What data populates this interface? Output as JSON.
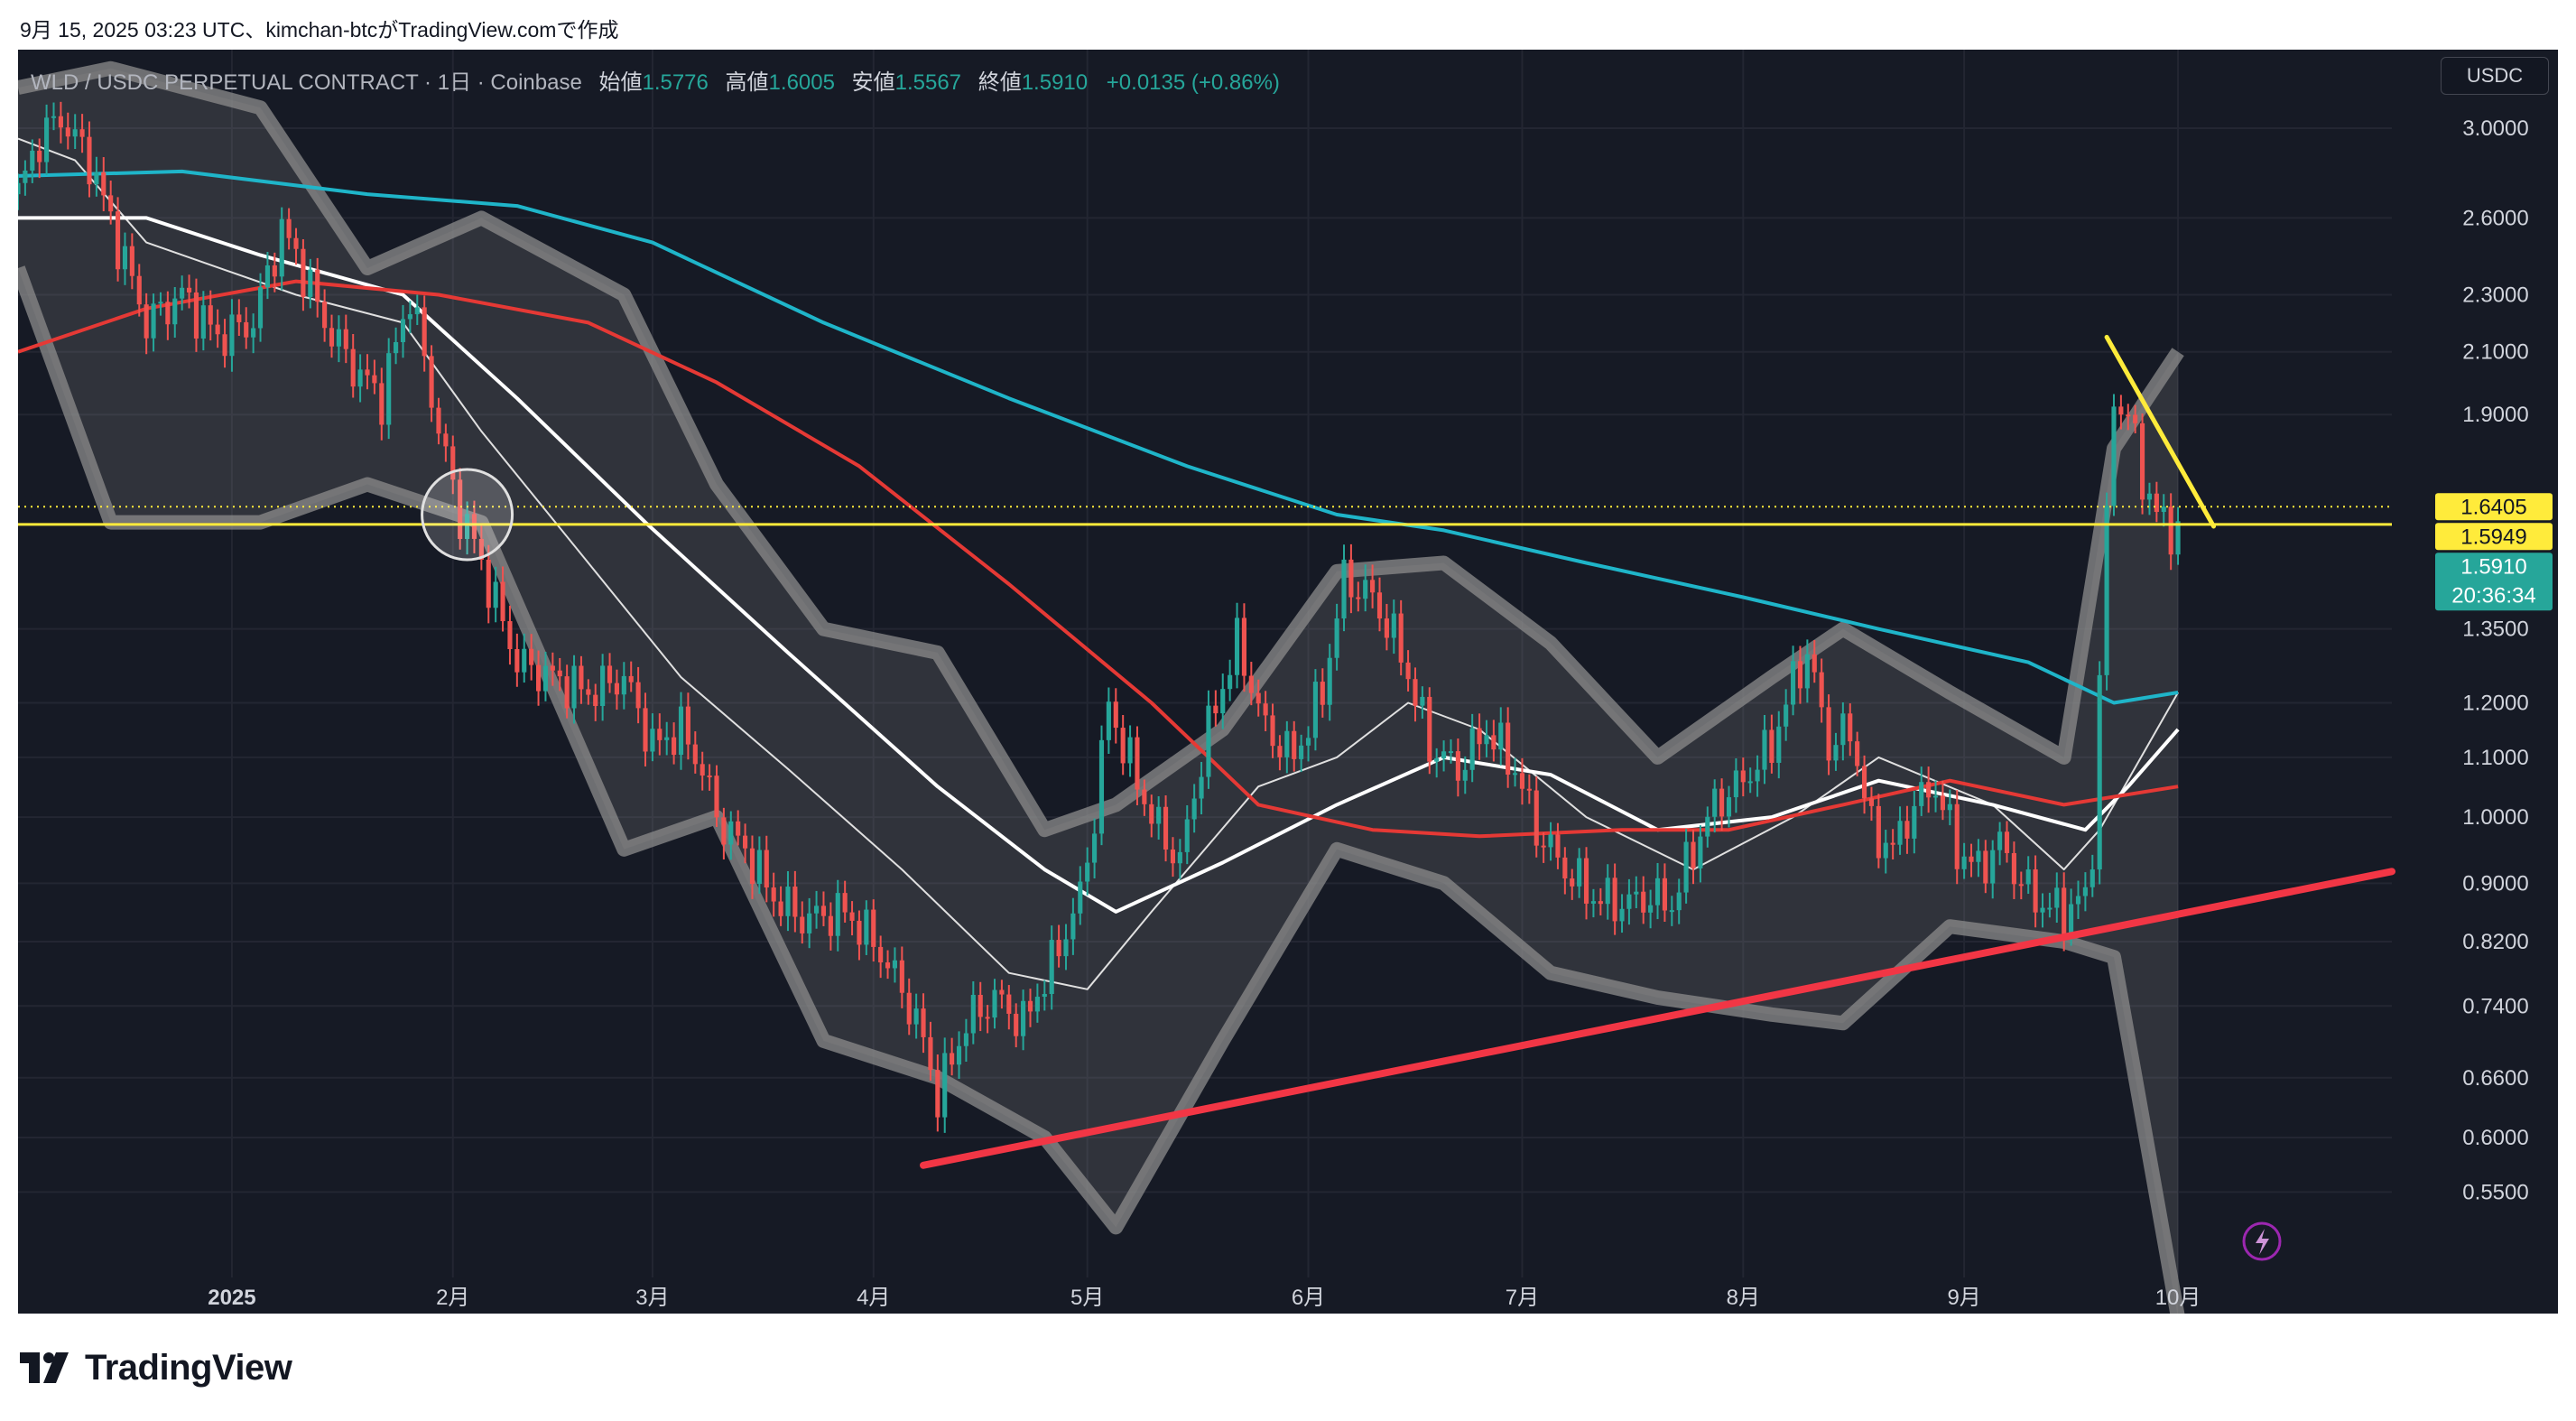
{
  "header": {
    "attribution": "9月 15, 2025 03:23 UTC、kimchan-btcがTradingView.comで作成"
  },
  "legend": {
    "symbol": "WLD / USDC PERPETUAL CONTRACT · 1日 · Coinbase",
    "open_label": "始値",
    "open_value": "1.5776",
    "high_label": "高値",
    "high_value": "1.6005",
    "low_label": "安値",
    "low_value": "1.5567",
    "close_label": "終値",
    "close_value": "1.5910",
    "change": "+0.0135 (+0.86%)"
  },
  "currency": "USDC",
  "brand": {
    "name": "TradingView",
    "icon": "tradingview-logo-icon"
  },
  "colors": {
    "background": "#161a25",
    "grid": "#232632",
    "up": "#26a69a",
    "down": "#ef5350",
    "ma_white": "#ffffff",
    "ma_red": "#e53935",
    "ma_cyan": "#1fb5c9",
    "band": "#8c8c8c",
    "support_line": "#f23645",
    "level_line": "#ffeb3b",
    "price_tag": "#26a69a"
  },
  "chart_data": {
    "type": "candlestick",
    "title": "WLD / USDC PERPETUAL CONTRACT · 1日 · Coinbase",
    "scale": "log",
    "ylim": [
      0.48,
      3.4
    ],
    "y_ticks": [
      "3.0000",
      "2.6000",
      "2.3000",
      "2.1000",
      "1.9000",
      "1.3500",
      "1.2000",
      "1.1000",
      "1.0000",
      "0.9000",
      "0.8200",
      "0.7400",
      "0.6600",
      "0.6000",
      "0.5500"
    ],
    "x_ticks": [
      "2025",
      "2月",
      "3月",
      "4月",
      "5月",
      "6月",
      "7月",
      "8月",
      "9月",
      "10月"
    ],
    "x_start": "2024-12-02",
    "x_end": "2025-10-31",
    "grid": true,
    "last_close": 1.591,
    "countdown": "20:36:34",
    "price_labels": [
      {
        "value": 1.6405,
        "text": "1.6405",
        "style": "yellow"
      },
      {
        "value": 1.5949,
        "text": "1.5949",
        "style": "yellow"
      },
      {
        "value": 1.591,
        "text": "1.5910",
        "style": "green"
      }
    ],
    "horizontal_level": 1.5949,
    "dotted_level": 1.6405,
    "waypoints": [
      [
        "2024-12-02",
        2.7
      ],
      [
        "2024-12-05",
        2.95
      ],
      [
        "2024-12-08",
        3.05
      ],
      [
        "2024-12-12",
        2.85
      ],
      [
        "2024-12-16",
        2.5
      ],
      [
        "2024-12-20",
        2.2
      ],
      [
        "2024-12-25",
        2.3
      ],
      [
        "2024-12-30",
        2.15
      ],
      [
        "2025-01-04",
        2.2
      ],
      [
        "2025-01-08",
        2.55
      ],
      [
        "2025-01-10",
        2.45
      ],
      [
        "2025-01-14",
        2.2
      ],
      [
        "2025-01-18",
        2.05
      ],
      [
        "2025-01-22",
        1.95
      ],
      [
        "2025-01-26",
        2.3
      ],
      [
        "2025-01-30",
        1.85
      ],
      [
        "2025-02-02",
        1.62
      ],
      [
        "2025-02-04",
        1.55
      ],
      [
        "2025-02-06",
        1.45
      ],
      [
        "2025-02-10",
        1.28
      ],
      [
        "2025-02-15",
        1.25
      ],
      [
        "2025-02-20",
        1.22
      ],
      [
        "2025-02-25",
        1.25
      ],
      [
        "2025-03-01",
        1.12
      ],
      [
        "2025-03-05",
        1.15
      ],
      [
        "2025-03-08",
        1.08
      ],
      [
        "2025-03-10",
        1.0
      ],
      [
        "2025-03-14",
        0.95
      ],
      [
        "2025-03-18",
        0.88
      ],
      [
        "2025-03-22",
        0.85
      ],
      [
        "2025-03-28",
        0.86
      ],
      [
        "2025-04-01",
        0.82
      ],
      [
        "2025-04-05",
        0.76
      ],
      [
        "2025-04-08",
        0.7
      ],
      [
        "2025-04-10",
        0.64
      ],
      [
        "2025-04-14",
        0.72
      ],
      [
        "2025-04-18",
        0.75
      ],
      [
        "2025-04-22",
        0.72
      ],
      [
        "2025-04-26",
        0.79
      ],
      [
        "2025-04-30",
        0.88
      ],
      [
        "2025-05-02",
        1.0
      ],
      [
        "2025-05-04",
        1.2
      ],
      [
        "2025-05-06",
        1.12
      ],
      [
        "2025-05-10",
        1.0
      ],
      [
        "2025-05-14",
        0.93
      ],
      [
        "2025-05-18",
        1.15
      ],
      [
        "2025-05-22",
        1.32
      ],
      [
        "2025-05-26",
        1.15
      ],
      [
        "2025-05-30",
        1.1
      ],
      [
        "2025-06-03",
        1.22
      ],
      [
        "2025-06-06",
        1.46
      ],
      [
        "2025-06-10",
        1.42
      ],
      [
        "2025-06-14",
        1.3
      ],
      [
        "2025-06-18",
        1.12
      ],
      [
        "2025-06-22",
        1.08
      ],
      [
        "2025-06-26",
        1.15
      ],
      [
        "2025-06-30",
        1.08
      ],
      [
        "2025-07-03",
        0.98
      ],
      [
        "2025-07-07",
        0.92
      ],
      [
        "2025-07-11",
        0.88
      ],
      [
        "2025-07-15",
        0.87
      ],
      [
        "2025-07-19",
        0.88
      ],
      [
        "2025-07-22",
        0.87
      ],
      [
        "2025-07-25",
        0.95
      ],
      [
        "2025-07-28",
        1.02
      ],
      [
        "2025-08-01",
        1.06
      ],
      [
        "2025-08-05",
        1.12
      ],
      [
        "2025-08-08",
        1.24
      ],
      [
        "2025-08-10",
        1.3
      ],
      [
        "2025-08-13",
        1.12
      ],
      [
        "2025-08-16",
        1.15
      ],
      [
        "2025-08-19",
        0.98
      ],
      [
        "2025-08-22",
        0.95
      ],
      [
        "2025-08-25",
        1.02
      ],
      [
        "2025-08-28",
        1.05
      ],
      [
        "2025-08-31",
        0.95
      ],
      [
        "2025-09-03",
        0.92
      ],
      [
        "2025-09-06",
        0.96
      ],
      [
        "2025-09-09",
        0.9
      ],
      [
        "2025-09-12",
        0.87
      ],
      [
        "2025-09-15",
        0.86
      ],
      [
        "2025-09-18",
        0.88
      ],
      [
        "2025-09-19",
        0.95
      ],
      [
        "2025-09-20",
        1.25
      ],
      [
        "2025-09-21",
        1.6
      ],
      [
        "2025-09-22",
        1.95
      ],
      [
        "2025-09-24",
        1.9
      ],
      [
        "2025-09-26",
        1.72
      ],
      [
        "2025-09-28",
        1.62
      ],
      [
        "2025-09-30",
        1.58
      ],
      [
        "2025-10-01",
        1.591
      ]
    ],
    "moving_averages": [
      {
        "name": "MA-fast",
        "color": "#e0e0e0",
        "points": [
          [
            "2024-12-02",
            2.95
          ],
          [
            "2024-12-10",
            2.85
          ],
          [
            "2024-12-20",
            2.5
          ],
          [
            "2025-01-10",
            2.3
          ],
          [
            "2025-01-25",
            2.2
          ],
          [
            "2025-02-05",
            1.85
          ],
          [
            "2025-02-20",
            1.5
          ],
          [
            "2025-03-05",
            1.25
          ],
          [
            "2025-03-20",
            1.08
          ],
          [
            "2025-04-05",
            0.92
          ],
          [
            "2025-04-20",
            0.78
          ],
          [
            "2025-05-01",
            0.76
          ],
          [
            "2025-05-10",
            0.86
          ],
          [
            "2025-05-25",
            1.05
          ],
          [
            "2025-06-05",
            1.1
          ],
          [
            "2025-06-15",
            1.2
          ],
          [
            "2025-06-25",
            1.15
          ],
          [
            "2025-07-10",
            1.0
          ],
          [
            "2025-07-25",
            0.92
          ],
          [
            "2025-08-08",
            1.0
          ],
          [
            "2025-08-20",
            1.1
          ],
          [
            "2025-09-05",
            1.02
          ],
          [
            "2025-09-15",
            0.92
          ],
          [
            "2025-09-20",
            0.98
          ],
          [
            "2025-10-01",
            1.22
          ]
        ]
      },
      {
        "name": "MA-white",
        "color": "#ffffff",
        "points": [
          [
            "2024-12-02",
            2.6
          ],
          [
            "2024-12-20",
            2.6
          ],
          [
            "2025-01-05",
            2.45
          ],
          [
            "2025-01-25",
            2.3
          ],
          [
            "2025-02-10",
            1.95
          ],
          [
            "2025-02-28",
            1.6
          ],
          [
            "2025-03-20",
            1.3
          ],
          [
            "2025-04-10",
            1.05
          ],
          [
            "2025-04-25",
            0.92
          ],
          [
            "2025-05-05",
            0.86
          ],
          [
            "2025-05-20",
            0.93
          ],
          [
            "2025-06-05",
            1.02
          ],
          [
            "2025-06-20",
            1.1
          ],
          [
            "2025-07-05",
            1.07
          ],
          [
            "2025-07-20",
            0.98
          ],
          [
            "2025-08-05",
            1.0
          ],
          [
            "2025-08-20",
            1.06
          ],
          [
            "2025-09-05",
            1.02
          ],
          [
            "2025-09-18",
            0.98
          ],
          [
            "2025-09-24",
            1.05
          ],
          [
            "2025-10-01",
            1.15
          ]
        ]
      },
      {
        "name": "MA-red",
        "color": "#e53935",
        "points": [
          [
            "2024-12-02",
            2.1
          ],
          [
            "2024-12-20",
            2.25
          ],
          [
            "2025-01-10",
            2.35
          ],
          [
            "2025-01-30",
            2.3
          ],
          [
            "2025-02-20",
            2.2
          ],
          [
            "2025-03-10",
            2.0
          ],
          [
            "2025-03-30",
            1.75
          ],
          [
            "2025-04-20",
            1.45
          ],
          [
            "2025-05-10",
            1.2
          ],
          [
            "2025-05-25",
            1.02
          ],
          [
            "2025-06-10",
            0.98
          ],
          [
            "2025-06-25",
            0.97
          ],
          [
            "2025-07-15",
            0.98
          ],
          [
            "2025-07-30",
            0.98
          ],
          [
            "2025-08-15",
            1.02
          ],
          [
            "2025-08-30",
            1.06
          ],
          [
            "2025-09-15",
            1.02
          ],
          [
            "2025-10-01",
            1.05
          ]
        ]
      },
      {
        "name": "MA-cyan",
        "color": "#1fb5c9",
        "points": [
          [
            "2024-12-02",
            2.78
          ],
          [
            "2024-12-25",
            2.8
          ],
          [
            "2025-01-20",
            2.7
          ],
          [
            "2025-02-10",
            2.65
          ],
          [
            "2025-03-01",
            2.5
          ],
          [
            "2025-03-25",
            2.2
          ],
          [
            "2025-04-20",
            1.95
          ],
          [
            "2025-05-15",
            1.75
          ],
          [
            "2025-06-05",
            1.62
          ],
          [
            "2025-06-20",
            1.58
          ],
          [
            "2025-07-10",
            1.5
          ],
          [
            "2025-08-01",
            1.42
          ],
          [
            "2025-08-20",
            1.35
          ],
          [
            "2025-09-10",
            1.28
          ],
          [
            "2025-09-22",
            1.2
          ],
          [
            "2025-10-01",
            1.22
          ]
        ]
      }
    ],
    "band_upper": [
      [
        "2024-12-02",
        3.2
      ],
      [
        "2024-12-15",
        3.3
      ],
      [
        "2025-01-05",
        3.1
      ],
      [
        "2025-01-20",
        2.4
      ],
      [
        "2025-02-05",
        2.6
      ],
      [
        "2025-02-25",
        2.3
      ],
      [
        "2025-03-10",
        1.7
      ],
      [
        "2025-03-25",
        1.35
      ],
      [
        "2025-04-10",
        1.3
      ],
      [
        "2025-04-25",
        0.98
      ],
      [
        "2025-05-05",
        1.02
      ],
      [
        "2025-05-20",
        1.15
      ],
      [
        "2025-06-05",
        1.48
      ],
      [
        "2025-06-20",
        1.5
      ],
      [
        "2025-07-05",
        1.32
      ],
      [
        "2025-07-20",
        1.1
      ],
      [
        "2025-08-05",
        1.25
      ],
      [
        "2025-08-15",
        1.35
      ],
      [
        "2025-08-30",
        1.22
      ],
      [
        "2025-09-15",
        1.1
      ],
      [
        "2025-09-22",
        1.8
      ],
      [
        "2025-10-01",
        2.1
      ]
    ],
    "band_lower": [
      [
        "2024-12-02",
        2.4
      ],
      [
        "2024-12-15",
        1.6
      ],
      [
        "2025-01-05",
        1.6
      ],
      [
        "2025-01-20",
        1.7
      ],
      [
        "2025-02-05",
        1.6
      ],
      [
        "2025-02-25",
        0.95
      ],
      [
        "2025-03-10",
        1.0
      ],
      [
        "2025-03-25",
        0.7
      ],
      [
        "2025-04-10",
        0.66
      ],
      [
        "2025-04-25",
        0.6
      ],
      [
        "2025-05-05",
        0.52
      ],
      [
        "2025-05-20",
        0.7
      ],
      [
        "2025-06-05",
        0.95
      ],
      [
        "2025-06-20",
        0.9
      ],
      [
        "2025-07-05",
        0.78
      ],
      [
        "2025-07-20",
        0.75
      ],
      [
        "2025-08-05",
        0.73
      ],
      [
        "2025-08-15",
        0.72
      ],
      [
        "2025-08-30",
        0.84
      ],
      [
        "2025-09-15",
        0.82
      ],
      [
        "2025-09-22",
        0.8
      ],
      [
        "2025-10-01",
        0.45
      ]
    ],
    "trendlines": [
      {
        "name": "support",
        "color": "#f23645",
        "from": [
          "2025-04-08",
          0.574
        ],
        "to": [
          "2025-10-31",
          0.917
        ]
      },
      {
        "name": "resistance",
        "color": "#ffeb3b",
        "from": [
          "2025-09-21",
          2.15
        ],
        "to": [
          "2025-10-06",
          1.59
        ]
      }
    ],
    "marker_circle": {
      "date": "2025-02-03",
      "value": 1.62
    }
  }
}
